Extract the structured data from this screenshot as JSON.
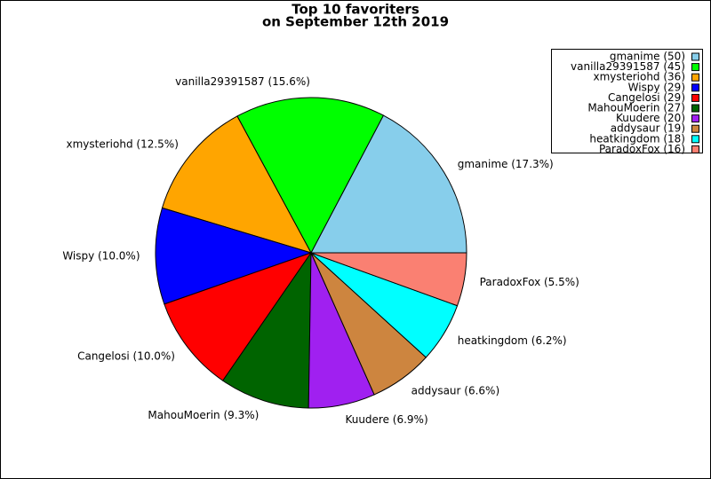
{
  "chart_data": {
    "type": "pie",
    "title": "Top 10 favoriters",
    "subtitle": "on September 12th 2019",
    "values": [
      50,
      45,
      36,
      29,
      29,
      27,
      20,
      19,
      18,
      16
    ],
    "value_labels": [
      "gmanime (17.3%)",
      "vanilla29391587 (15.6%)",
      "xmysteriohd (12.5%)",
      "Wispy (10.0%)",
      "Cangelosi (10.0%)",
      "MahouMoerin (9.3%)",
      "Kuudere (6.9%)",
      "addysaur (6.6%)",
      "heatkingdom (6.2%)",
      "ParadoxFox (5.5%)"
    ],
    "legend_labels": [
      "gmanime (50)",
      "vanilla29391587 (45)",
      "xmysteriohd (36)",
      "Wispy (29)",
      "Cangelosi (29)",
      "MahouMoerin (27)",
      "Kuudere (20)",
      "addysaur (19)",
      "heatkingdom (18)",
      "ParadoxFox (16)"
    ],
    "colors": [
      "#87ceeb",
      "#00ff00",
      "#ffa500",
      "#0000ff",
      "#ff0000",
      "#006400",
      "#a020f0",
      "#cd853f",
      "#00ffff",
      "#fa8072"
    ],
    "legend": "upper right"
  }
}
